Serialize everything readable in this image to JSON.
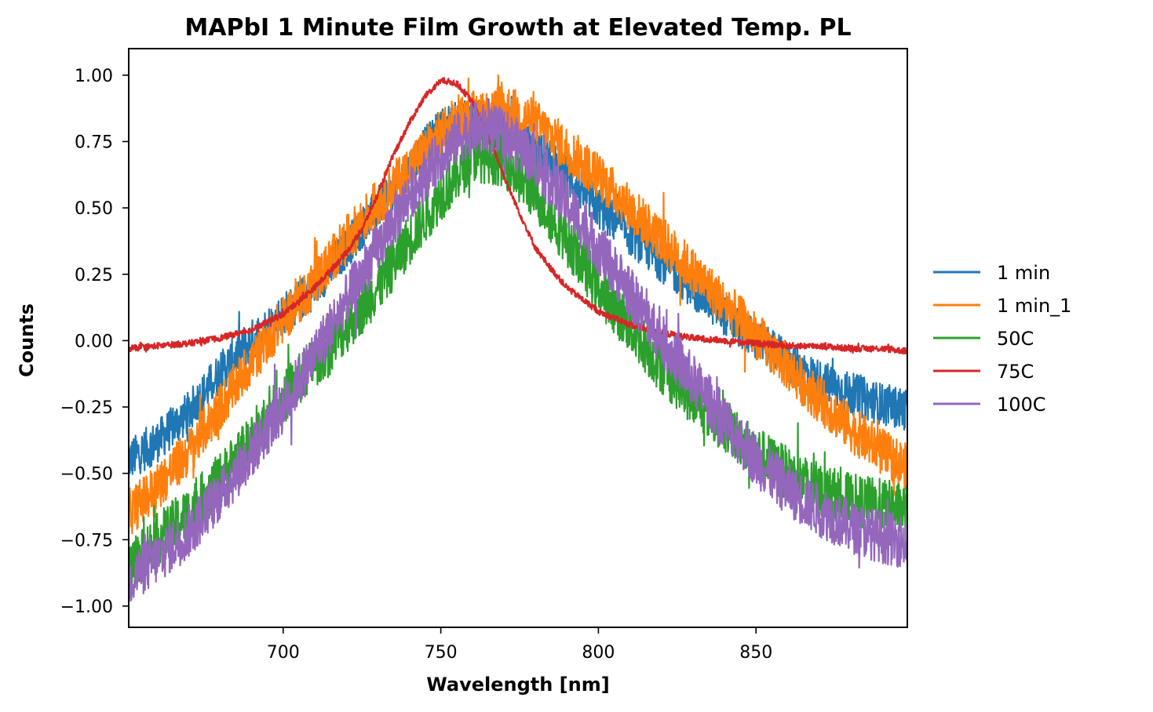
{
  "chart_data": {
    "type": "line",
    "title": "MAPbI 1 Minute Film Growth at Elevated Temp. PL",
    "xlabel": "Wavelength [nm]",
    "ylabel": "Counts",
    "xlim": [
      651,
      898
    ],
    "ylim": [
      -1.08,
      1.1
    ],
    "x_ticks": [
      700,
      750,
      800,
      850
    ],
    "x_tick_labels": [
      "700",
      "750",
      "800",
      "850"
    ],
    "y_ticks": [
      1.0,
      0.75,
      0.5,
      0.25,
      0.0,
      -0.25,
      -0.5,
      -0.75,
      -1.0
    ],
    "y_tick_labels": [
      "1.00",
      "0.75",
      "0.50",
      "0.25",
      "0.00",
      "−0.25",
      "−0.50",
      "−0.75",
      "−1.00"
    ],
    "grid": false,
    "legend_position": "right, outside plot",
    "series": [
      {
        "name": "1 min",
        "color": "#1f77b4",
        "noise": 0.08,
        "x": [
          651,
          660,
          670,
          680,
          690,
          700,
          710,
          720,
          730,
          740,
          750,
          755,
          760,
          770,
          780,
          790,
          800,
          810,
          820,
          830,
          840,
          850,
          860,
          870,
          880,
          890,
          898
        ],
        "y": [
          -0.45,
          -0.38,
          -0.27,
          -0.12,
          0.0,
          0.1,
          0.2,
          0.35,
          0.5,
          0.65,
          0.8,
          0.82,
          0.83,
          0.8,
          0.72,
          0.62,
          0.5,
          0.4,
          0.3,
          0.2,
          0.1,
          0.0,
          -0.08,
          -0.15,
          -0.2,
          -0.24,
          -0.26
        ]
      },
      {
        "name": "1 min_1",
        "color": "#ff7f0e",
        "noise": 0.09,
        "x": [
          651,
          660,
          670,
          680,
          690,
          700,
          710,
          720,
          730,
          740,
          750,
          755,
          760,
          770,
          780,
          790,
          800,
          810,
          820,
          830,
          840,
          850,
          860,
          870,
          880,
          890,
          898
        ],
        "y": [
          -0.65,
          -0.55,
          -0.42,
          -0.25,
          -0.08,
          0.08,
          0.22,
          0.38,
          0.52,
          0.65,
          0.78,
          0.82,
          0.85,
          0.88,
          0.82,
          0.72,
          0.62,
          0.5,
          0.38,
          0.26,
          0.14,
          0.02,
          -0.1,
          -0.22,
          -0.33,
          -0.42,
          -0.48
        ]
      },
      {
        "name": "50C",
        "color": "#2ca02c",
        "noise": 0.1,
        "x": [
          651,
          660,
          670,
          680,
          690,
          700,
          710,
          720,
          730,
          740,
          750,
          755,
          760,
          770,
          780,
          790,
          800,
          810,
          820,
          830,
          840,
          850,
          860,
          870,
          880,
          890,
          898
        ],
        "y": [
          -0.85,
          -0.75,
          -0.65,
          -0.52,
          -0.38,
          -0.22,
          -0.08,
          0.05,
          0.2,
          0.38,
          0.55,
          0.62,
          0.7,
          0.68,
          0.55,
          0.38,
          0.2,
          0.05,
          -0.1,
          -0.22,
          -0.32,
          -0.42,
          -0.5,
          -0.56,
          -0.6,
          -0.62,
          -0.64
        ]
      },
      {
        "name": "75C",
        "color": "#d62728",
        "noise": 0.012,
        "x": [
          651,
          660,
          670,
          680,
          690,
          700,
          710,
          720,
          725,
          730,
          735,
          740,
          745,
          750,
          755,
          760,
          765,
          770,
          775,
          780,
          785,
          790,
          800,
          810,
          820,
          830,
          840,
          850,
          860,
          870,
          880,
          890,
          898
        ],
        "y": [
          -0.03,
          -0.02,
          -0.01,
          0.01,
          0.04,
          0.1,
          0.2,
          0.33,
          0.42,
          0.55,
          0.7,
          0.82,
          0.92,
          0.98,
          0.97,
          0.9,
          0.78,
          0.62,
          0.48,
          0.35,
          0.27,
          0.2,
          0.11,
          0.06,
          0.03,
          0.01,
          -0.0,
          -0.01,
          -0.02,
          -0.02,
          -0.03,
          -0.03,
          -0.04
        ]
      },
      {
        "name": "100C",
        "color": "#9467bd",
        "noise": 0.1,
        "x": [
          651,
          660,
          670,
          680,
          690,
          700,
          710,
          720,
          730,
          740,
          750,
          755,
          760,
          770,
          780,
          790,
          800,
          810,
          820,
          830,
          840,
          850,
          860,
          870,
          880,
          890,
          898
        ],
        "y": [
          -0.9,
          -0.82,
          -0.72,
          -0.58,
          -0.42,
          -0.25,
          -0.05,
          0.15,
          0.35,
          0.55,
          0.7,
          0.76,
          0.8,
          0.78,
          0.68,
          0.52,
          0.35,
          0.18,
          0.0,
          -0.15,
          -0.3,
          -0.45,
          -0.56,
          -0.64,
          -0.7,
          -0.74,
          -0.76
        ]
      }
    ]
  }
}
